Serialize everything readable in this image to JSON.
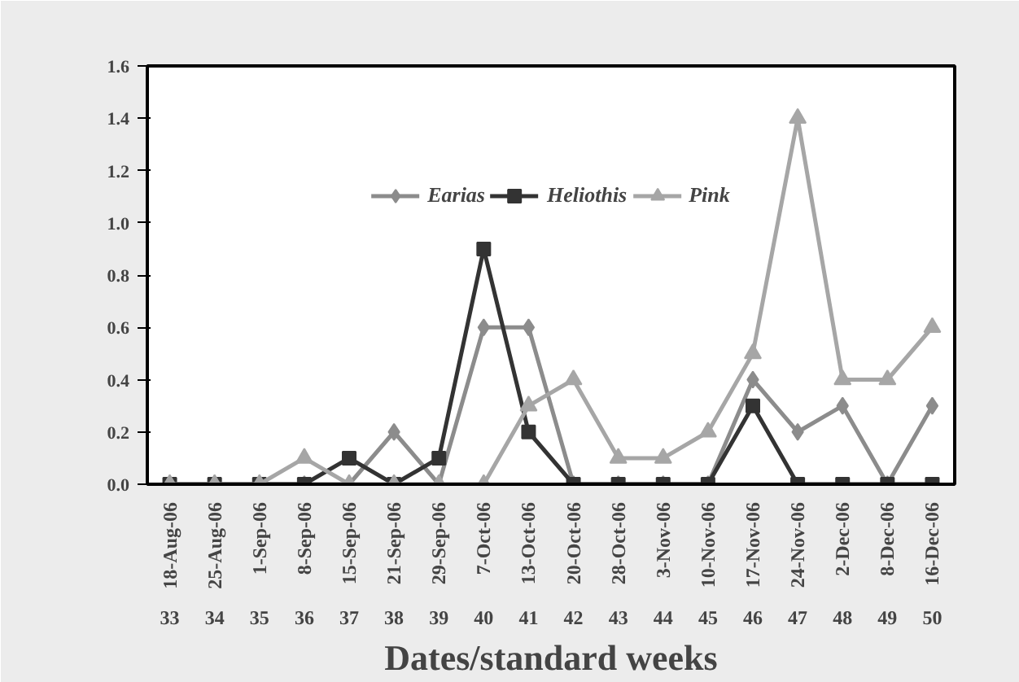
{
  "chart_data": {
    "type": "line",
    "xlabel": "Dates/standard weeks",
    "categories": [
      "18-Aug-06\n33",
      "25-Aug-06\n34",
      "1-Sep-06\n35",
      "8-Sep-06\n36",
      "15-Sep-06\n37",
      "21-Sep-06\n38",
      "29-Sep-06\n39",
      "7-Oct-06\n40",
      "13-Oct-06\n41",
      "20-Oct-06\n42",
      "28-Oct-06\n43",
      "3-Nov-06\n44",
      "10-Nov-06\n45",
      "17-Nov-06\n46",
      "24-Nov-06\n47",
      "2-Dec-06\n48",
      "8-Dec-06\n49",
      "16-Dec-06\n50"
    ],
    "series": [
      {
        "name": "Earias",
        "color": "#8c8c8c",
        "marker": "diamond",
        "values": [
          0,
          0,
          0,
          0,
          0,
          0.2,
          0,
          0.6,
          0.6,
          0,
          0,
          0,
          0,
          0.4,
          0.2,
          0.3,
          0,
          0.3
        ]
      },
      {
        "name": "Heliothis",
        "color": "#333333",
        "marker": "square",
        "values": [
          0,
          0,
          0,
          0,
          0.1,
          0,
          0.1,
          0.9,
          0.2,
          0,
          0,
          0,
          0,
          0.3,
          0,
          0,
          0,
          0
        ]
      },
      {
        "name": "Pink",
        "color": "#a6a6a6",
        "marker": "triangle",
        "values": [
          0,
          0,
          0,
          0.1,
          0,
          0,
          0,
          0,
          0.3,
          0.4,
          0.1,
          0.1,
          0.2,
          0.5,
          1.4,
          0.4,
          0.4,
          0.6
        ]
      }
    ],
    "ylim": [
      0,
      1.6
    ],
    "yticks": [
      {
        "value": 0,
        "label": "0.0"
      },
      {
        "value": 0.2,
        "label": "0.2"
      },
      {
        "value": 0.4,
        "label": "0.4"
      },
      {
        "value": 0.6,
        "label": "0.6"
      },
      {
        "value": 0.8,
        "label": "0.8"
      },
      {
        "value": 1.0,
        "label": "1.0"
      },
      {
        "value": 1.2,
        "label": "1.2"
      },
      {
        "value": 1.4,
        "label": "1.4"
      },
      {
        "value": 1.6,
        "label": "1.6"
      }
    ],
    "grid": false,
    "legend": "top",
    "line_style": "solid"
  }
}
